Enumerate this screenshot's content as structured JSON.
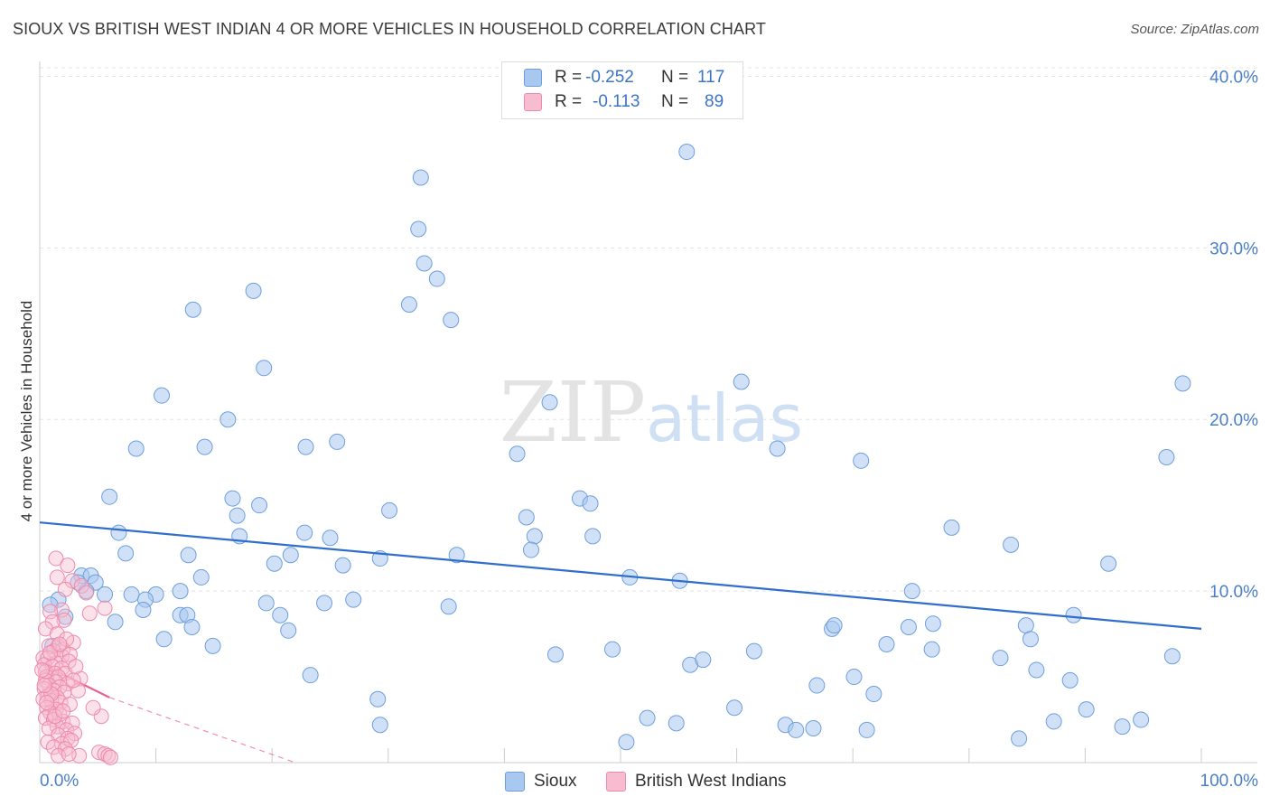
{
  "title": "SIOUX VS BRITISH WEST INDIAN 4 OR MORE VEHICLES IN HOUSEHOLD CORRELATION CHART",
  "source": "Source: ZipAtlas.com",
  "watermark": {
    "zip": "ZIP",
    "atlas": "atlas"
  },
  "legend": {
    "rows": [
      {
        "r_label": "R =",
        "r_value": "-0.252",
        "n_label": "N =",
        "n_value": "117",
        "color": "#a9c8f0",
        "border": "#6e9fdc"
      },
      {
        "r_label": "R =",
        "r_value": "-0.113",
        "n_label": "N =",
        "n_value": "89",
        "color": "#f7bcd0",
        "border": "#ee8aaa"
      }
    ]
  },
  "bottom_legend": {
    "sioux": "Sioux",
    "bwi": "British West Indians"
  },
  "chart_data": {
    "type": "scatter",
    "title": "SIOUX VS BRITISH WEST INDIAN 4 OR MORE VEHICLES IN HOUSEHOLD CORRELATION CHART",
    "ylabel": "4 or more Vehicles in Household",
    "xlabel": "",
    "xlim": [
      0,
      100
    ],
    "ylim": [
      0,
      40.5
    ],
    "x_tick_labels": [
      "0.0%",
      "100.0%"
    ],
    "y_ticks": [
      10,
      20,
      30,
      40
    ],
    "y_tick_labels": [
      "10.0%",
      "20.0%",
      "30.0%",
      "40.0%"
    ],
    "colors": {
      "sioux_fill": "#a9c8f0",
      "sioux_stroke": "#6e9fdc",
      "sioux_line": "#2f6fcb",
      "bwi_fill": "#f7bcd0",
      "bwi_stroke": "#ee8aaa",
      "bwi_line": "#e8628c"
    },
    "series": [
      {
        "name": "Sioux",
        "trend": {
          "x0": 0,
          "y0": 14.0,
          "x1": 100,
          "y1": 7.8
        },
        "points": [
          [
            55.7,
            35.6
          ],
          [
            32.8,
            34.1
          ],
          [
            32.6,
            31.1
          ],
          [
            33.1,
            29.1
          ],
          [
            34.2,
            28.2
          ],
          [
            31.8,
            26.7
          ],
          [
            35.4,
            25.8
          ],
          [
            13.2,
            26.4
          ],
          [
            18.4,
            27.5
          ],
          [
            19.3,
            23.0
          ],
          [
            10.5,
            21.4
          ],
          [
            16.2,
            20.0
          ],
          [
            8.3,
            18.3
          ],
          [
            14.2,
            18.4
          ],
          [
            22.9,
            18.4
          ],
          [
            25.6,
            18.7
          ],
          [
            43.9,
            21.0
          ],
          [
            60.4,
            22.2
          ],
          [
            41.1,
            18.0
          ],
          [
            63.5,
            18.3
          ],
          [
            70.7,
            17.6
          ],
          [
            98.4,
            22.1
          ],
          [
            97.0,
            17.8
          ],
          [
            6.0,
            15.5
          ],
          [
            16.6,
            15.4
          ],
          [
            17.0,
            14.4
          ],
          [
            18.9,
            15.0
          ],
          [
            30.1,
            14.7
          ],
          [
            46.5,
            15.4
          ],
          [
            47.4,
            15.1
          ],
          [
            41.9,
            14.3
          ],
          [
            42.6,
            13.2
          ],
          [
            47.6,
            13.2
          ],
          [
            6.8,
            13.4
          ],
          [
            17.2,
            13.2
          ],
          [
            22.8,
            13.4
          ],
          [
            25.0,
            13.1
          ],
          [
            7.4,
            12.2
          ],
          [
            12.8,
            12.1
          ],
          [
            21.6,
            12.1
          ],
          [
            20.2,
            11.6
          ],
          [
            26.1,
            11.5
          ],
          [
            29.3,
            11.9
          ],
          [
            35.9,
            12.1
          ],
          [
            42.3,
            12.4
          ],
          [
            78.5,
            13.7
          ],
          [
            83.6,
            12.7
          ],
          [
            92.0,
            11.6
          ],
          [
            3.6,
            10.9
          ],
          [
            4.4,
            10.9
          ],
          [
            4.8,
            10.5
          ],
          [
            4.0,
            10.0
          ],
          [
            5.6,
            9.8
          ],
          [
            7.9,
            9.8
          ],
          [
            10.0,
            9.8
          ],
          [
            13.9,
            10.8
          ],
          [
            12.1,
            10.0
          ],
          [
            9.1,
            9.5
          ],
          [
            1.6,
            9.5
          ],
          [
            0.9,
            9.2
          ],
          [
            2.2,
            8.5
          ],
          [
            6.5,
            8.2
          ],
          [
            8.9,
            8.9
          ],
          [
            12.1,
            8.6
          ],
          [
            12.7,
            8.6
          ],
          [
            13.1,
            7.9
          ],
          [
            19.5,
            9.3
          ],
          [
            20.7,
            8.6
          ],
          [
            21.4,
            7.7
          ],
          [
            24.5,
            9.3
          ],
          [
            27.0,
            9.5
          ],
          [
            35.2,
            9.1
          ],
          [
            50.8,
            10.8
          ],
          [
            55.1,
            10.6
          ],
          [
            75.1,
            10.0
          ],
          [
            89.0,
            8.6
          ],
          [
            10.7,
            7.2
          ],
          [
            14.9,
            6.8
          ],
          [
            44.4,
            6.3
          ],
          [
            49.3,
            6.6
          ],
          [
            56.0,
            5.7
          ],
          [
            57.1,
            6.0
          ],
          [
            61.5,
            6.5
          ],
          [
            68.2,
            7.8
          ],
          [
            68.4,
            8.0
          ],
          [
            72.9,
            6.9
          ],
          [
            74.8,
            7.9
          ],
          [
            76.9,
            8.1
          ],
          [
            76.8,
            6.6
          ],
          [
            84.9,
            8.0
          ],
          [
            82.7,
            6.1
          ],
          [
            85.3,
            7.2
          ],
          [
            85.8,
            5.4
          ],
          [
            88.7,
            4.8
          ],
          [
            97.5,
            6.2
          ],
          [
            23.3,
            5.1
          ],
          [
            29.1,
            3.7
          ],
          [
            29.3,
            2.2
          ],
          [
            52.3,
            2.6
          ],
          [
            54.8,
            2.3
          ],
          [
            59.8,
            3.2
          ],
          [
            66.9,
            4.5
          ],
          [
            70.1,
            5.0
          ],
          [
            71.8,
            4.0
          ],
          [
            64.2,
            2.2
          ],
          [
            65.1,
            1.9
          ],
          [
            66.6,
            2.0
          ],
          [
            71.2,
            1.9
          ],
          [
            90.1,
            3.1
          ],
          [
            93.2,
            2.1
          ],
          [
            94.8,
            2.5
          ],
          [
            87.3,
            2.4
          ],
          [
            84.3,
            1.4
          ],
          [
            50.5,
            1.2
          ],
          [
            3.3,
            10.5
          ],
          [
            1.1,
            6.8
          ]
        ]
      },
      {
        "name": "British West Indians",
        "trend": {
          "x0": 0,
          "y0": 5.8,
          "x1": 6,
          "y1": 3.8
        },
        "trend_extension": {
          "x0": 6,
          "y0": 3.8,
          "x1": 22,
          "y1": 0.0
        },
        "points": [
          [
            1.4,
            11.9
          ],
          [
            2.4,
            11.5
          ],
          [
            1.5,
            10.8
          ],
          [
            2.8,
            10.6
          ],
          [
            3.6,
            10.3
          ],
          [
            2.2,
            10.1
          ],
          [
            4.0,
            9.9
          ],
          [
            1.9,
            8.9
          ],
          [
            0.9,
            8.8
          ],
          [
            4.3,
            8.7
          ],
          [
            5.6,
            9.0
          ],
          [
            2.1,
            8.3
          ],
          [
            1.1,
            8.2
          ],
          [
            0.5,
            7.8
          ],
          [
            1.5,
            7.5
          ],
          [
            2.9,
            7.0
          ],
          [
            0.8,
            6.8
          ],
          [
            1.6,
            6.8
          ],
          [
            2.0,
            6.6
          ],
          [
            1.2,
            6.5
          ],
          [
            1.9,
            6.2
          ],
          [
            2.6,
            6.3
          ],
          [
            0.3,
            6.1
          ],
          [
            0.7,
            6.1
          ],
          [
            1.4,
            5.8
          ],
          [
            2.5,
            5.9
          ],
          [
            0.4,
            5.7
          ],
          [
            1.1,
            5.6
          ],
          [
            1.9,
            5.5
          ],
          [
            0.5,
            5.3
          ],
          [
            1.3,
            5.2
          ],
          [
            2.2,
            5.2
          ],
          [
            0.6,
            5.0
          ],
          [
            1.6,
            5.0
          ],
          [
            3.5,
            4.9
          ],
          [
            0.5,
            4.8
          ],
          [
            1.4,
            4.7
          ],
          [
            2.4,
            4.6
          ],
          [
            0.8,
            4.5
          ],
          [
            1.7,
            4.4
          ],
          [
            0.4,
            4.3
          ],
          [
            1.2,
            4.2
          ],
          [
            2.1,
            4.1
          ],
          [
            3.3,
            4.2
          ],
          [
            0.7,
            3.9
          ],
          [
            1.5,
            3.8
          ],
          [
            0.3,
            3.7
          ],
          [
            1.0,
            3.6
          ],
          [
            1.8,
            3.5
          ],
          [
            2.6,
            3.4
          ],
          [
            0.6,
            3.2
          ],
          [
            1.4,
            3.1
          ],
          [
            0.9,
            2.9
          ],
          [
            1.7,
            2.8
          ],
          [
            5.3,
            2.7
          ],
          [
            0.5,
            2.6
          ],
          [
            1.2,
            2.5
          ],
          [
            2.0,
            2.4
          ],
          [
            2.8,
            2.3
          ],
          [
            1.5,
            2.1
          ],
          [
            0.8,
            2.0
          ],
          [
            2.3,
            1.9
          ],
          [
            3.0,
            1.7
          ],
          [
            1.6,
            1.6
          ],
          [
            2.4,
            1.4
          ],
          [
            0.7,
            1.2
          ],
          [
            1.9,
            1.1
          ],
          [
            2.7,
            1.3
          ],
          [
            1.2,
            0.9
          ],
          [
            2.2,
            0.8
          ],
          [
            5.1,
            0.6
          ],
          [
            5.6,
            0.5
          ],
          [
            3.4,
            0.4
          ],
          [
            5.9,
            0.4
          ],
          [
            6.1,
            0.3
          ],
          [
            1.6,
            0.4
          ],
          [
            2.5,
            0.5
          ],
          [
            0.9,
            6.4
          ],
          [
            2.3,
            7.2
          ],
          [
            1.0,
            4.0
          ],
          [
            0.6,
            3.5
          ],
          [
            1.3,
            2.7
          ],
          [
            2.0,
            3.0
          ],
          [
            3.1,
            5.6
          ],
          [
            0.2,
            5.4
          ],
          [
            0.4,
            4.5
          ],
          [
            1.7,
            6.9
          ],
          [
            2.9,
            4.8
          ],
          [
            4.6,
            3.2
          ]
        ]
      }
    ]
  }
}
